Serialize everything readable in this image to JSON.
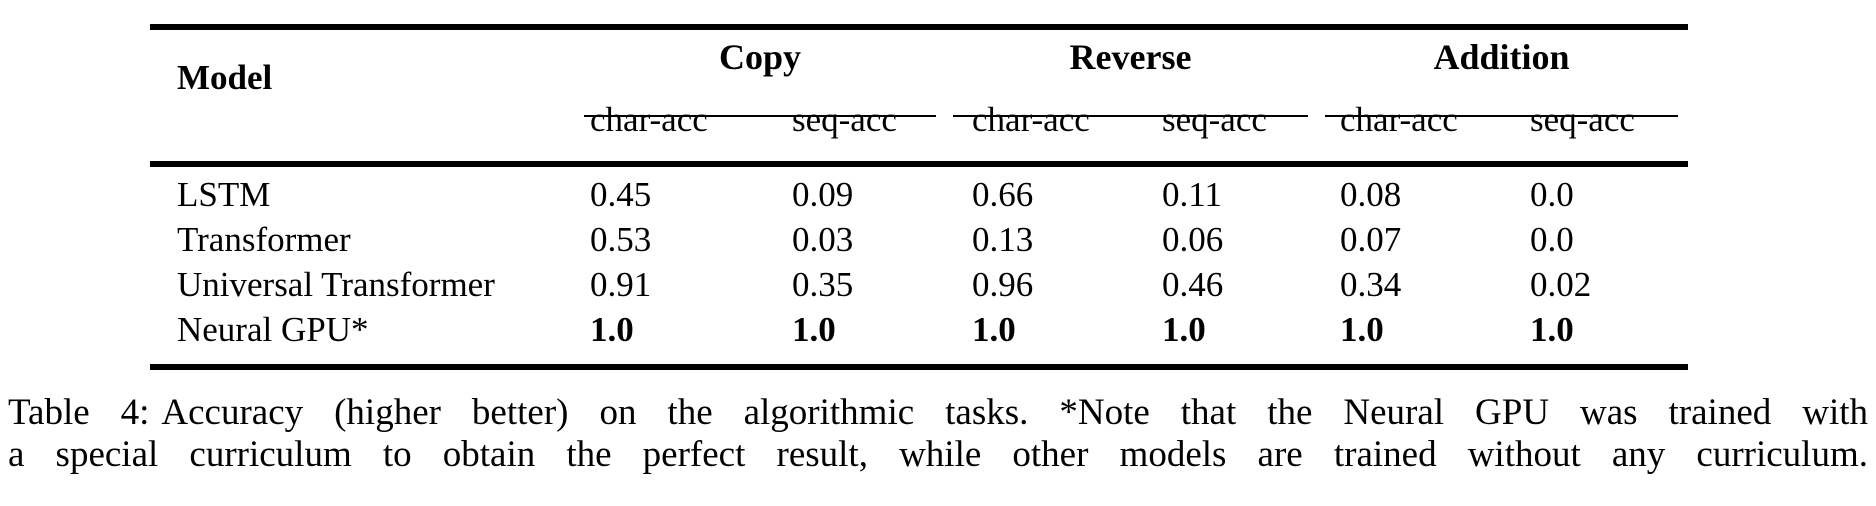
{
  "table": {
    "header": {
      "model_label": "Model",
      "groups": [
        {
          "label": "Copy"
        },
        {
          "label": "Reverse"
        },
        {
          "label": "Addition"
        }
      ],
      "subheaders": [
        "char-acc",
        "seq-acc",
        "char-acc",
        "seq-acc",
        "char-acc",
        "seq-acc"
      ]
    },
    "rows": [
      {
        "model": "LSTM",
        "values": [
          "0.45",
          "0.09",
          "0.66",
          "0.11",
          "0.08",
          "0.0"
        ]
      },
      {
        "model": "Transformer",
        "values": [
          "0.53",
          "0.03",
          "0.13",
          "0.06",
          "0.07",
          "0.0"
        ]
      },
      {
        "model": "Universal Transformer",
        "values": [
          "0.91",
          "0.35",
          "0.96",
          "0.46",
          "0.34",
          "0.02"
        ]
      },
      {
        "model": "Neural GPU*",
        "values": [
          "1.0",
          "1.0",
          "1.0",
          "1.0",
          "1.0",
          "1.0"
        ]
      }
    ]
  },
  "caption": {
    "label": "Table 4:",
    "line1": "Accuracy (higher better) on the algorithmic tasks. *Note that the Neural GPU was trained with",
    "line2": "a special curriculum to obtain the perfect result, while other models are trained without any curriculum."
  },
  "colors": {
    "text": "#000000",
    "background": "#ffffff",
    "rules": "#000000"
  }
}
